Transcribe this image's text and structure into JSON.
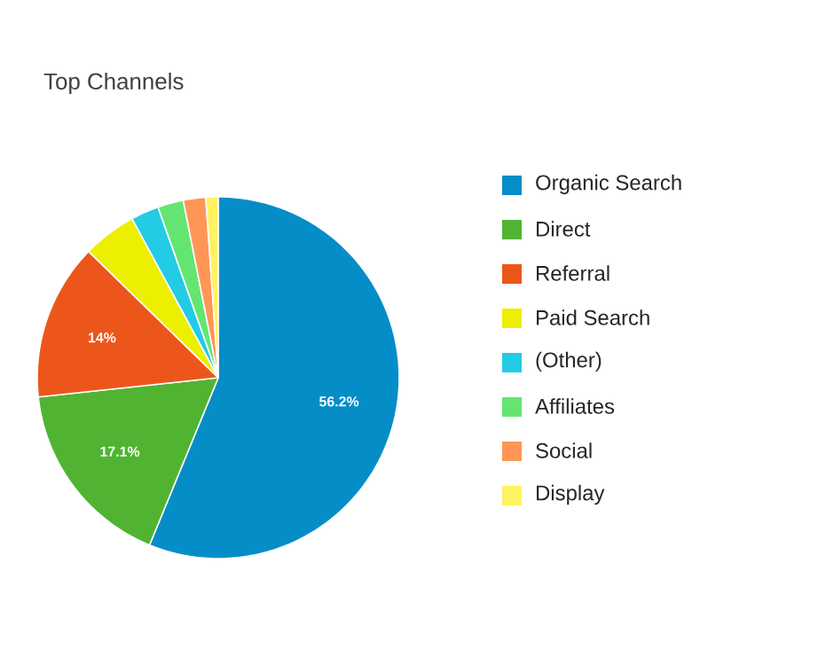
{
  "chart_data": {
    "type": "pie",
    "title": "Top Channels",
    "categories": [
      "Organic Search",
      "Direct",
      "Referral",
      "Paid Search",
      "(Other)",
      "Affiliates",
      "Social",
      "Display"
    ],
    "values": [
      56.2,
      17.1,
      14,
      4.8,
      2.5,
      2.3,
      2.0,
      1.1
    ],
    "colors": [
      "#058dc7",
      "#50b432",
      "#ed561b",
      "#edef00",
      "#24cbe5",
      "#64e572",
      "#ff9655",
      "#fff263"
    ],
    "value_labels": [
      "56.2%",
      "17.1%",
      "14%",
      null,
      null,
      null,
      null,
      null
    ],
    "legend": "right"
  }
}
